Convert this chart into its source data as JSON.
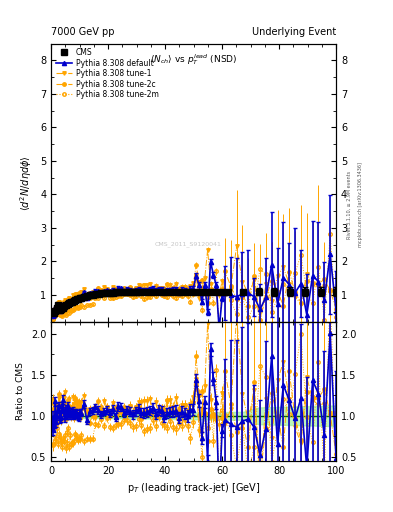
{
  "title_left": "7000 GeV pp",
  "title_right": "Underlying Event",
  "plot_title": "$\\langle N_{ch}\\rangle$ vs $p_T^{lead}$ (NSD)",
  "ylabel_main": "$\\langle d^2N/d\\eta d\\phi\\rangle$",
  "ylabel_ratio": "Ratio to CMS",
  "xlabel": "p$_T$ (leading track-jet) [GeV]",
  "watermark": "CMS_2011_S9120041",
  "right_label_top": "Rivet 3.1.10, ≥ 2.9M events",
  "right_label_bottom": "mcplots.cern.ch [arXiv:1306.3436]",
  "xlim": [
    0,
    100
  ],
  "ylim_main": [
    0.2,
    8.5
  ],
  "ylim_ratio": [
    0.45,
    2.15
  ],
  "yticks_main": [
    1,
    2,
    3,
    4,
    5,
    6,
    7,
    8
  ],
  "yticks_ratio": [
    0.5,
    1.0,
    1.5,
    2.0
  ],
  "ratio_band_color": "#90ee90",
  "ratio_band_alpha": 0.6,
  "ratio_line_color": "#006400",
  "cms_color": "#000000",
  "default_color": "#0000cc",
  "orange_color": "#ffa500"
}
